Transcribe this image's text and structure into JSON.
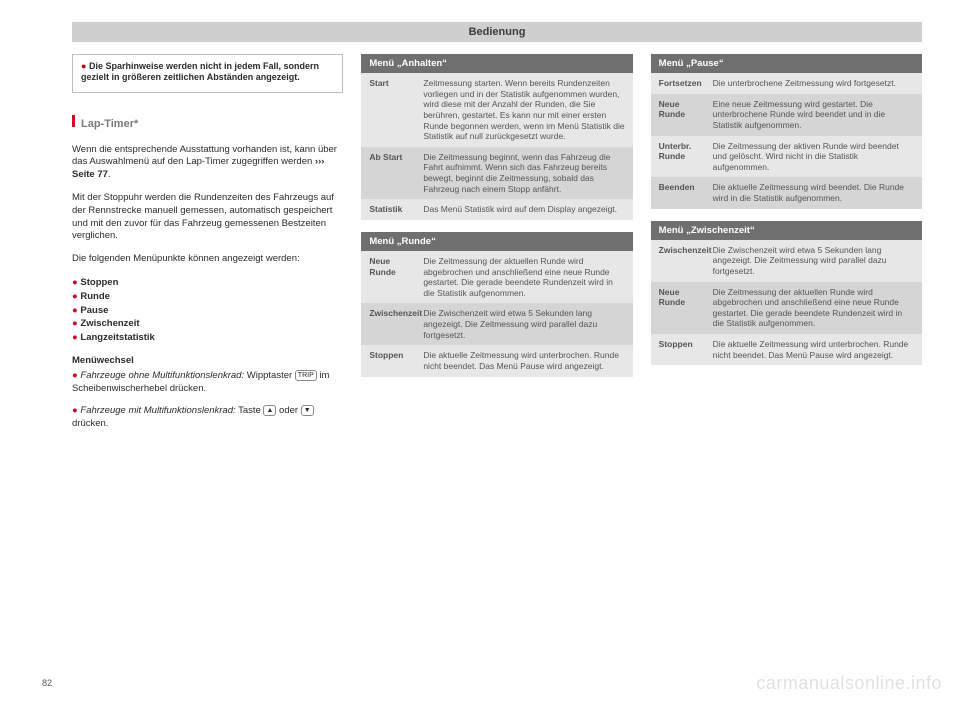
{
  "header": {
    "title": "Bedienung"
  },
  "page_number": "82",
  "watermark": "carmanualsonline.info",
  "col1": {
    "note": "Die Sparhinweise werden nicht in jedem Fall, sondern gezielt in größeren zeitlichen Abständen angezeigt.",
    "section_title": "Lap-Timer*",
    "p1a": "Wenn die entsprechende Ausstattung vorhanden ist, kann über das Auswahlmenü auf den Lap-Timer zugegriffen werden ",
    "p1b": "››› Seite 77",
    "p1c": ".",
    "p2": "Mit der Stoppuhr werden die Rundenzeiten des Fahrzeugs auf der Rennstrecke manuell gemessen, automatisch gespeichert und mit den zuvor für das Fahrzeug gemessenen Bestzeiten verglichen.",
    "p3": "Die folgenden Menüpunkte können angezeigt werden:",
    "bullets": [
      "Stoppen",
      "Runde",
      "Pause",
      "Zwischenzeit",
      "Langzeitstatistik"
    ],
    "menu_head": "Menüwechsel",
    "mw1a": "Fahrzeuge ohne Multifunktionslenkrad:",
    "mw1b": " Wipptaster ",
    "mw1c": " im Scheibenwischerhebel drücken.",
    "mw2a": "Fahrzeuge mit Multifunktionslenkrad:",
    "mw2b": " Taste ",
    "mw2c": " oder ",
    "mw2d": " drücken."
  },
  "menus": {
    "anhalten": {
      "title": "Menü „Anhalten“",
      "rows": [
        {
          "k": "Start",
          "v": "Zeitmessung starten.\nWenn bereits Rundenzeiten vorliegen und in der Statistik aufgenommen wurden, wird diese mit der Anzahl der Runden, die Sie berühren, gestartet.\nEs kann nur mit einer ersten Runde begonnen werden, wenn im Menü Statistik die Statistik auf null zurückgesetzt wurde."
        },
        {
          "k": "Ab Start",
          "v": "Die Zeitmessung beginnt, wenn das Fahrzeug die Fahrt aufnimmt.\nWenn sich das Fahrzeug bereits bewegt, beginnt die Zeitmessung, sobald das Fahrzeug nach einem Stopp anfährt."
        },
        {
          "k": "Statistik",
          "v": "Das Menü Statistik wird auf dem Display angezeigt."
        }
      ]
    },
    "runde": {
      "title": "Menü „Runde“",
      "rows": [
        {
          "k": "Neue Runde",
          "v": "Die Zeitmessung der aktuellen Runde wird abgebrochen und anschließend eine neue Runde gestartet. Die gerade beendete Rundenzeit wird in die Statistik aufgenommen."
        },
        {
          "k": "Zwischenzeit",
          "v": "Die Zwischenzeit wird etwa 5 Sekunden lang angezeigt. Die Zeitmessung wird parallel dazu fortgesetzt."
        },
        {
          "k": "Stoppen",
          "v": "Die aktuelle Zeitmessung wird unterbrochen. Runde nicht beendet. Das Menü Pause wird angezeigt."
        }
      ]
    },
    "pause": {
      "title": "Menü „Pause“",
      "rows": [
        {
          "k": "Fortsetzen",
          "v": "Die unterbrochene Zeitmessung wird fortgesetzt."
        },
        {
          "k": "Neue Runde",
          "v": "Eine neue Zeitmessung wird gestartet. Die unterbrochene Runde wird beendet und in die Statistik aufgenommen."
        },
        {
          "k": "Unterbr. Runde",
          "v": "Die Zeitmessung der aktiven Runde wird beendet und gelöscht. Wird nicht in die Statistik aufgenommen."
        },
        {
          "k": "Beenden",
          "v": "Die aktuelle Zeitmessung wird beendet. Die Runde wird in die Statistik aufgenommen."
        }
      ]
    },
    "zwischenzeit": {
      "title": "Menü „Zwischenzeit“",
      "rows": [
        {
          "k": "Zwischenzeit",
          "v": "Die Zwischenzeit wird etwa 5 Sekunden lang angezeigt. Die Zeitmessung wird parallel dazu fortgesetzt."
        },
        {
          "k": "Neue Runde",
          "v": "Die Zeitmessung der aktuellen Runde wird abgebrochen und anschließend eine neue Runde gestartet. Die gerade beendete Rundenzeit wird in die Statistik aufgenommen."
        },
        {
          "k": "Stoppen",
          "v": "Die aktuelle Zeitmessung wird unterbrochen. Runde nicht beendet. Das Menü Pause wird angezeigt."
        }
      ]
    }
  },
  "colors": {
    "accent": "#c8102e",
    "titlebar_bg": "#cfcfcf",
    "menutitle_bg": "#6f6f6f",
    "zebra0": "#e7e7e7",
    "zebra1": "#d5d5d5"
  }
}
